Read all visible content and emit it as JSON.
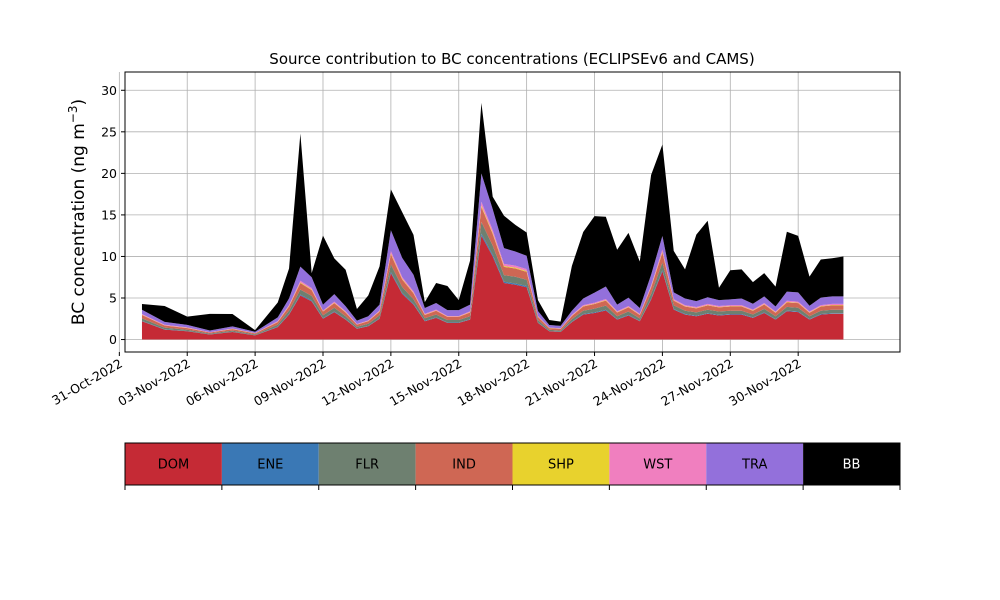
{
  "chart_data": {
    "type": "area",
    "stacked": true,
    "title": "Source contribution to BC concentrations (ECLIPSEv6 and CAMS)",
    "ylabel": "BC concentration (ng m⁻³)",
    "ylabel_main": "BC concentration (ng m",
    "ylabel_exp": "−3",
    "ylabel_close": ")",
    "xlabel": "",
    "ylim": [
      -1.5,
      32.2
    ],
    "xlim": [
      "2022-10-31T06:00",
      "2022-12-04T12:00"
    ],
    "yticks": [
      0,
      5,
      10,
      15,
      20,
      25,
      30
    ],
    "xticks": [
      "2022-10-31",
      "2022-11-03",
      "2022-11-06",
      "2022-11-09",
      "2022-11-12",
      "2022-11-15",
      "2022-11-18",
      "2022-11-21",
      "2022-11-24",
      "2022-11-27",
      "2022-11-30"
    ],
    "xtick_labels": [
      "31-Oct-2022",
      "03-Nov-2022",
      "06-Nov-2022",
      "09-Nov-2022",
      "12-Nov-2022",
      "15-Nov-2022",
      "18-Nov-2022",
      "21-Nov-2022",
      "24-Nov-2022",
      "27-Nov-2022",
      "30-Nov-2022"
    ],
    "grid": true,
    "dates": [
      "2022-11-01",
      "2022-11-02",
      "2022-11-03",
      "2022-11-04",
      "2022-11-05",
      "2022-11-06",
      "2022-11-07",
      "2022-11-07T12:00",
      "2022-11-08",
      "2022-11-08T12:00",
      "2022-11-09",
      "2022-11-09T12:00",
      "2022-11-10",
      "2022-11-10T12:00",
      "2022-11-11",
      "2022-11-11T12:00",
      "2022-11-12",
      "2022-11-12T12:00",
      "2022-11-13",
      "2022-11-13T12:00",
      "2022-11-14",
      "2022-11-14T12:00",
      "2022-11-15",
      "2022-11-15T12:00",
      "2022-11-16",
      "2022-11-16T12:00",
      "2022-11-17",
      "2022-11-17T12:00",
      "2022-11-18",
      "2022-11-18T12:00",
      "2022-11-19",
      "2022-11-19T12:00",
      "2022-11-20",
      "2022-11-20T12:00",
      "2022-11-21",
      "2022-11-21T12:00",
      "2022-11-22",
      "2022-11-22T12:00",
      "2022-11-23",
      "2022-11-23T12:00",
      "2022-11-24",
      "2022-11-24T12:00",
      "2022-11-25",
      "2022-11-25T12:00",
      "2022-11-26",
      "2022-11-26T12:00",
      "2022-11-27",
      "2022-11-27T12:00",
      "2022-11-28",
      "2022-11-28T12:00",
      "2022-11-29",
      "2022-11-29T12:00",
      "2022-11-30",
      "2022-11-30T12:00",
      "2022-12-01",
      "2022-12-01T12:00",
      "2022-12-02"
    ],
    "series": [
      {
        "name": "DOM",
        "color": "#c52a35",
        "values": [
          2.2,
          1.2,
          1.0,
          0.6,
          0.9,
          0.5,
          1.5,
          3.0,
          5.3,
          4.6,
          2.5,
          3.3,
          2.4,
          1.3,
          1.6,
          2.5,
          8.0,
          5.5,
          4.2,
          2.2,
          2.6,
          2.0,
          2.0,
          2.4,
          12.5,
          10.0,
          6.8,
          6.6,
          6.3,
          2.0,
          1.0,
          0.9,
          2.1,
          3.0,
          3.2,
          3.5,
          2.4,
          2.9,
          2.2,
          4.8,
          8.2,
          3.6,
          3.0,
          2.8,
          3.1,
          2.9,
          3.0,
          3.0,
          2.6,
          3.2,
          2.4,
          3.4,
          3.3,
          2.4,
          3.0,
          3.1,
          3.1
        ]
      },
      {
        "name": "ENE",
        "color": "#3a78b5",
        "values": [
          0.05,
          0.04,
          0.03,
          0.02,
          0.03,
          0.02,
          0.05,
          0.08,
          0.1,
          0.1,
          0.06,
          0.08,
          0.06,
          0.04,
          0.05,
          0.06,
          0.15,
          0.12,
          0.1,
          0.06,
          0.06,
          0.05,
          0.05,
          0.06,
          0.25,
          0.2,
          0.15,
          0.15,
          0.14,
          0.05,
          0.03,
          0.03,
          0.05,
          0.07,
          0.07,
          0.08,
          0.06,
          0.07,
          0.05,
          0.1,
          0.15,
          0.08,
          0.07,
          0.07,
          0.07,
          0.07,
          0.07,
          0.07,
          0.06,
          0.07,
          0.06,
          0.08,
          0.08,
          0.06,
          0.07,
          0.07,
          0.07
        ]
      },
      {
        "name": "FLR",
        "color": "#6e8070",
        "values": [
          0.3,
          0.2,
          0.15,
          0.1,
          0.15,
          0.1,
          0.25,
          0.4,
          0.6,
          0.55,
          0.35,
          0.45,
          0.35,
          0.2,
          0.25,
          0.35,
          0.9,
          0.7,
          0.55,
          0.3,
          0.35,
          0.3,
          0.3,
          0.35,
          1.4,
          1.1,
          0.8,
          0.8,
          0.75,
          0.3,
          0.15,
          0.15,
          0.3,
          0.4,
          0.45,
          0.5,
          0.35,
          0.4,
          0.3,
          0.6,
          0.9,
          0.45,
          0.4,
          0.4,
          0.42,
          0.4,
          0.4,
          0.4,
          0.36,
          0.42,
          0.35,
          0.45,
          0.45,
          0.35,
          0.4,
          0.42,
          0.42
        ]
      },
      {
        "name": "IND",
        "color": "#cf6754",
        "values": [
          0.4,
          0.25,
          0.2,
          0.12,
          0.18,
          0.12,
          0.3,
          0.5,
          0.8,
          0.7,
          0.45,
          0.55,
          0.45,
          0.25,
          0.3,
          0.45,
          1.2,
          0.9,
          0.7,
          0.4,
          0.45,
          0.38,
          0.38,
          0.45,
          1.8,
          1.4,
          1.0,
          1.0,
          0.95,
          0.38,
          0.2,
          0.2,
          0.38,
          0.5,
          0.55,
          0.6,
          0.45,
          0.5,
          0.4,
          0.75,
          1.2,
          0.55,
          0.5,
          0.48,
          0.52,
          0.5,
          0.5,
          0.5,
          0.45,
          0.52,
          0.42,
          0.55,
          0.55,
          0.42,
          0.5,
          0.52,
          0.52
        ]
      },
      {
        "name": "SHP",
        "color": "#e8d22d",
        "values": [
          0.03,
          0.02,
          0.02,
          0.01,
          0.02,
          0.01,
          0.03,
          0.05,
          0.08,
          0.07,
          0.04,
          0.05,
          0.04,
          0.02,
          0.03,
          0.04,
          0.12,
          0.09,
          0.07,
          0.04,
          0.04,
          0.03,
          0.03,
          0.04,
          0.18,
          0.14,
          0.1,
          0.1,
          0.1,
          0.03,
          0.02,
          0.02,
          0.04,
          0.05,
          0.05,
          0.06,
          0.04,
          0.05,
          0.04,
          0.07,
          0.12,
          0.05,
          0.05,
          0.05,
          0.05,
          0.05,
          0.05,
          0.05,
          0.04,
          0.05,
          0.04,
          0.05,
          0.05,
          0.04,
          0.05,
          0.05,
          0.05
        ]
      },
      {
        "name": "WST",
        "color": "#f07fbf",
        "values": [
          0.1,
          0.07,
          0.06,
          0.04,
          0.05,
          0.03,
          0.08,
          0.12,
          0.2,
          0.18,
          0.1,
          0.14,
          0.1,
          0.06,
          0.07,
          0.1,
          0.3,
          0.22,
          0.18,
          0.1,
          0.1,
          0.08,
          0.08,
          0.1,
          0.45,
          0.35,
          0.25,
          0.25,
          0.24,
          0.08,
          0.05,
          0.05,
          0.1,
          0.12,
          0.13,
          0.14,
          0.1,
          0.12,
          0.1,
          0.18,
          0.3,
          0.14,
          0.12,
          0.12,
          0.13,
          0.12,
          0.12,
          0.12,
          0.1,
          0.13,
          0.1,
          0.14,
          0.14,
          0.1,
          0.12,
          0.13,
          0.13
        ]
      },
      {
        "name": "TRA",
        "color": "#9370db",
        "values": [
          0.5,
          0.35,
          0.3,
          0.2,
          0.25,
          0.15,
          0.45,
          0.8,
          1.7,
          1.3,
          0.7,
          0.9,
          0.6,
          0.4,
          0.5,
          0.7,
          2.5,
          2.3,
          2.0,
          0.7,
          0.8,
          0.7,
          0.7,
          0.8,
          3.4,
          2.5,
          1.9,
          1.7,
          1.6,
          0.6,
          0.3,
          0.3,
          0.5,
          0.8,
          1.2,
          1.5,
          0.8,
          1.0,
          0.7,
          1.3,
          1.6,
          0.8,
          0.8,
          0.7,
          0.8,
          0.7,
          0.7,
          0.8,
          0.7,
          0.8,
          0.6,
          1.1,
          1.1,
          0.7,
          0.9,
          0.9,
          0.9
        ]
      },
      {
        "name": "BB",
        "color": "#000000",
        "values": [
          0.7,
          1.9,
          1.0,
          2.0,
          1.5,
          0.2,
          1.8,
          3.6,
          16.0,
          0.5,
          8.3,
          4.3,
          4.4,
          1.4,
          2.5,
          4.6,
          4.9,
          5.5,
          4.8,
          0.7,
          2.4,
          2.9,
          1.2,
          5.3,
          8.5,
          1.5,
          3.9,
          3.2,
          2.8,
          1.3,
          0.6,
          0.5,
          5.4,
          8.0,
          9.2,
          8.4,
          6.6,
          7.8,
          5.6,
          12.0,
          11.0,
          5.0,
          3.5,
          8.0,
          9.2,
          1.5,
          3.5,
          3.5,
          2.6,
          2.8,
          2.4,
          7.2,
          6.8,
          3.5,
          4.6,
          4.6,
          4.8
        ]
      }
    ]
  },
  "legend": [
    {
      "label": "DOM",
      "color": "#c52a35",
      "text_color": "#000000"
    },
    {
      "label": "ENE",
      "color": "#3a78b5",
      "text_color": "#000000"
    },
    {
      "label": "FLR",
      "color": "#6e8070",
      "text_color": "#000000"
    },
    {
      "label": "IND",
      "color": "#cf6754",
      "text_color": "#000000"
    },
    {
      "label": "SHP",
      "color": "#e8d22d",
      "text_color": "#000000"
    },
    {
      "label": "WST",
      "color": "#f07fbf",
      "text_color": "#000000"
    },
    {
      "label": "TRA",
      "color": "#9370db",
      "text_color": "#000000"
    },
    {
      "label": "BB",
      "color": "#000000",
      "text_color": "#ffffff"
    }
  ]
}
